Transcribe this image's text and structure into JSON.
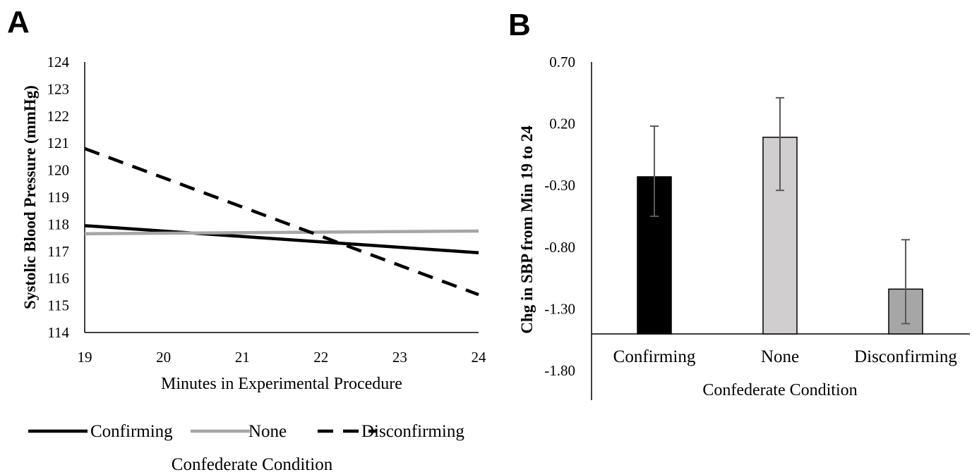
{
  "panel_a_label": "A",
  "panel_b_label": "B",
  "chart_data": [
    {
      "type": "line",
      "panel": "A",
      "title": "",
      "xlabel": "Minutes in Experimental Procedure",
      "ylabel": "Systolic Blood Pressure (mmHg)",
      "xlim": [
        19,
        24
      ],
      "ylim": [
        114,
        124
      ],
      "x_ticks": [
        "19",
        "20",
        "21",
        "22",
        "23",
        "24"
      ],
      "y_ticks": [
        "114",
        "115",
        "116",
        "117",
        "118",
        "119",
        "120",
        "121",
        "122",
        "123",
        "124"
      ],
      "legend_title": "Confederate Condition",
      "legend_position": "bottom",
      "series": [
        {
          "name": "Confirming",
          "x": [
            19,
            24
          ],
          "y": [
            117.95,
            116.95
          ],
          "color": "#000000",
          "style": "solid"
        },
        {
          "name": "None",
          "x": [
            19,
            24
          ],
          "y": [
            117.65,
            117.75
          ],
          "color": "#a6a6a6",
          "style": "solid"
        },
        {
          "name": "Disconfirming",
          "x": [
            19,
            24
          ],
          "y": [
            120.8,
            115.4
          ],
          "color": "#000000",
          "style": "dashed"
        }
      ]
    },
    {
      "type": "bar",
      "panel": "B",
      "title": "",
      "xlabel": "Confederate Condition",
      "ylabel": "Chg in SBP from Min 19 to 24",
      "ylim": [
        -1.8,
        0.7
      ],
      "y_ticks": [
        "0.70",
        "0.20",
        "-0.30",
        "-0.80",
        "-1.30",
        "-1.80"
      ],
      "categories": [
        "Confirming",
        "None",
        "Disconfirming"
      ],
      "values": [
        -0.23,
        0.09,
        -1.14
      ],
      "error_low": [
        -0.55,
        -0.34,
        -1.42
      ],
      "error_high": [
        0.18,
        0.41,
        -0.74
      ],
      "colors": [
        "#000000",
        "#d0cece",
        "#a6a6a6"
      ]
    }
  ]
}
